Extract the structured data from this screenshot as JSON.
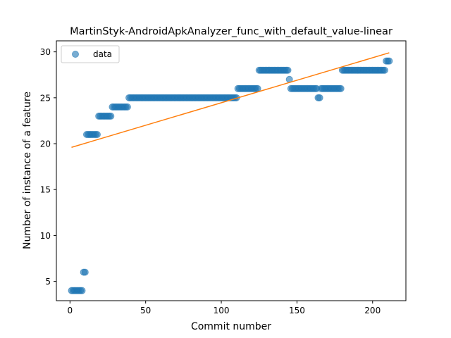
{
  "chart_data": {
    "type": "scatter",
    "title": "MartinStyk-AndroidApkAnalyzer_func_with_default_value-linear",
    "xlabel": "Commit number",
    "ylabel": "Number of instance of a feature",
    "xlim": [
      -9,
      222
    ],
    "ylim": [
      2.9,
      31.2
    ],
    "xticks": [
      0,
      50,
      100,
      150,
      200
    ],
    "yticks": [
      5,
      10,
      15,
      20,
      25,
      30
    ],
    "grid": false,
    "legend_position": "top-left",
    "series": [
      {
        "name": "data",
        "kind": "points",
        "color": "#1f77b4",
        "segments": [
          {
            "x_start": 1,
            "x_end": 8,
            "y": 4
          },
          {
            "x_start": 9,
            "x_end": 10,
            "y": 6
          },
          {
            "x_start": 11,
            "x_end": 18,
            "y": 21
          },
          {
            "x_start": 19,
            "x_end": 27,
            "y": 23
          },
          {
            "x_start": 28,
            "x_end": 38,
            "y": 24
          },
          {
            "x_start": 39,
            "x_end": 110,
            "y": 25
          },
          {
            "x_start": 111,
            "x_end": 124,
            "y": 26
          },
          {
            "x_start": 125,
            "x_end": 144,
            "y": 28
          },
          {
            "x_start": 145,
            "x_end": 145,
            "y": 27
          },
          {
            "x_start": 146,
            "x_end": 163,
            "y": 26
          },
          {
            "x_start": 164,
            "x_end": 165,
            "y": 25
          },
          {
            "x_start": 166,
            "x_end": 179,
            "y": 26
          },
          {
            "x_start": 180,
            "x_end": 208,
            "y": 28
          },
          {
            "x_start": 209,
            "x_end": 211,
            "y": 29
          }
        ]
      },
      {
        "kind": "line",
        "color": "#ff7f0e",
        "x": [
          1,
          211
        ],
        "y": [
          19.6,
          29.9
        ]
      }
    ]
  }
}
